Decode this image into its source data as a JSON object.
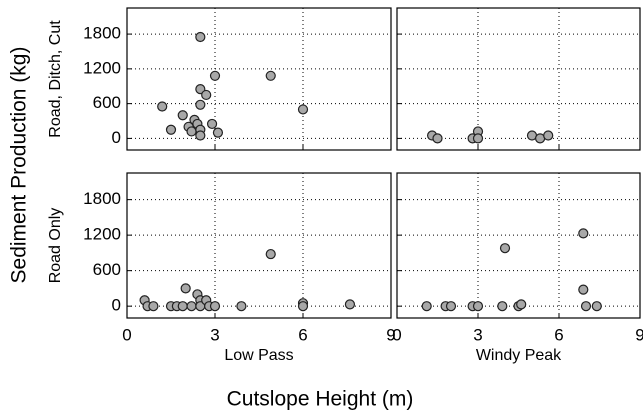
{
  "axis_titles": {
    "y": "Sediment Production (kg)",
    "x": "Cutslope Height (m)"
  },
  "chart_data": [
    {
      "type": "scatter",
      "row_label": "Road, Ditch, Cut",
      "x": [
        1.2,
        1.5,
        1.9,
        2.1,
        2.2,
        2.3,
        2.4,
        2.5,
        2.5,
        2.5,
        2.5,
        2.5,
        2.7,
        2.9,
        3.0,
        3.1,
        4.9,
        6.0
      ],
      "values": [
        550,
        150,
        400,
        200,
        120,
        320,
        250,
        1750,
        580,
        850,
        150,
        50,
        750,
        250,
        1080,
        100,
        1080,
        500
      ],
      "xlim": [
        0,
        9
      ],
      "xticks": [
        0,
        3,
        6,
        9
      ],
      "ylim": [
        -200,
        2250
      ],
      "yticks": [
        0,
        600,
        1200,
        1800
      ],
      "grid": true,
      "color": "#a8a8a8",
      "show_xtick_labels": false,
      "show_ytick_labels": true
    },
    {
      "type": "scatter",
      "x": [
        1.3,
        1.5,
        2.8,
        3.0,
        3.0,
        5.0,
        5.3,
        5.6
      ],
      "values": [
        50,
        0,
        0,
        120,
        0,
        50,
        0,
        50
      ],
      "xlim": [
        0,
        9
      ],
      "xticks": [
        0,
        3,
        6,
        9
      ],
      "ylim": [
        -200,
        2250
      ],
      "yticks": [
        0,
        600,
        1200,
        1800
      ],
      "grid": true,
      "color": "#a8a8a8",
      "show_xtick_labels": false,
      "show_ytick_labels": false
    },
    {
      "type": "scatter",
      "row_label": "Road Only",
      "column_label": "Low Pass",
      "x": [
        0.6,
        0.7,
        0.9,
        1.5,
        1.7,
        1.9,
        2.0,
        2.2,
        2.4,
        2.5,
        2.5,
        2.7,
        2.8,
        3.0,
        3.9,
        4.9,
        6.0,
        6.0,
        7.6
      ],
      "values": [
        100,
        0,
        0,
        0,
        0,
        0,
        300,
        0,
        200,
        100,
        0,
        100,
        0,
        0,
        0,
        880,
        50,
        0,
        30
      ],
      "xlim": [
        0,
        9
      ],
      "xticks": [
        0,
        3,
        6,
        9
      ],
      "ylim": [
        -200,
        2250
      ],
      "yticks": [
        0,
        600,
        1200,
        1800
      ],
      "grid": true,
      "color": "#a8a8a8",
      "show_xtick_labels": true,
      "show_ytick_labels": true
    },
    {
      "type": "scatter",
      "column_label": "Windy Peak",
      "x": [
        1.1,
        1.8,
        2.0,
        2.8,
        3.0,
        3.9,
        4.0,
        4.5,
        4.6,
        6.9,
        6.9,
        7.0,
        7.4
      ],
      "values": [
        0,
        0,
        0,
        0,
        0,
        0,
        980,
        0,
        30,
        1230,
        280,
        0,
        0
      ],
      "xlim": [
        0,
        9
      ],
      "xticks": [
        0,
        3,
        6,
        9
      ],
      "ylim": [
        -200,
        2250
      ],
      "yticks": [
        0,
        600,
        1200,
        1800
      ],
      "grid": true,
      "color": "#a8a8a8",
      "show_xtick_labels": true,
      "show_ytick_labels": false
    }
  ]
}
